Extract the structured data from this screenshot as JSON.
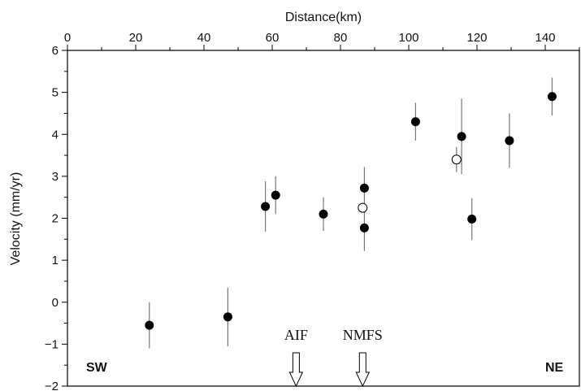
{
  "chart_data": {
    "type": "scatter",
    "xlabel": "Distance(km)",
    "ylabel": "Velocity (mm/yr)",
    "xlim": [
      0,
      150
    ],
    "ylim": [
      -2,
      6
    ],
    "x_ticks": [
      "0",
      "20",
      "40",
      "60",
      "80",
      "100",
      "120",
      "140"
    ],
    "y_ticks": [
      "−2",
      "−1",
      "0",
      "1",
      "2",
      "3",
      "4",
      "5",
      "6"
    ],
    "x_axis_position": "top",
    "grid": false,
    "series": [
      {
        "marker": "filled-circle",
        "points": [
          {
            "x": 24,
            "y": -0.55,
            "err": 0.55
          },
          {
            "x": 47,
            "y": -0.35,
            "err": 0.7
          },
          {
            "x": 58,
            "y": 2.28,
            "err": 0.6
          },
          {
            "x": 61,
            "y": 2.55,
            "err": 0.45
          },
          {
            "x": 75,
            "y": 2.1,
            "err": 0.4
          },
          {
            "x": 87,
            "y": 2.72,
            "err": 0.5
          },
          {
            "x": 87,
            "y": 1.77,
            "err": 0.55
          },
          {
            "x": 102,
            "y": 4.3,
            "err": 0.45
          },
          {
            "x": 115.5,
            "y": 3.95,
            "err": 0.9
          },
          {
            "x": 118.5,
            "y": 1.98,
            "err": 0.5
          },
          {
            "x": 129.5,
            "y": 3.85,
            "err": 0.65
          },
          {
            "x": 142,
            "y": 4.9,
            "err": 0.45
          }
        ]
      },
      {
        "marker": "open-circle",
        "points": [
          {
            "x": 86.5,
            "y": 2.25,
            "err": 0
          },
          {
            "x": 114,
            "y": 3.4,
            "err": 0.3
          }
        ]
      }
    ],
    "fault_markers": [
      {
        "label": "AIF",
        "x": 67
      },
      {
        "label": "NMFS",
        "x": 86.5
      }
    ],
    "corner_labels": {
      "left": "SW",
      "right": "NE"
    },
    "colors": {
      "marker": "#000000",
      "error_bar": "#777777",
      "open_fill": "#ffffff"
    }
  }
}
